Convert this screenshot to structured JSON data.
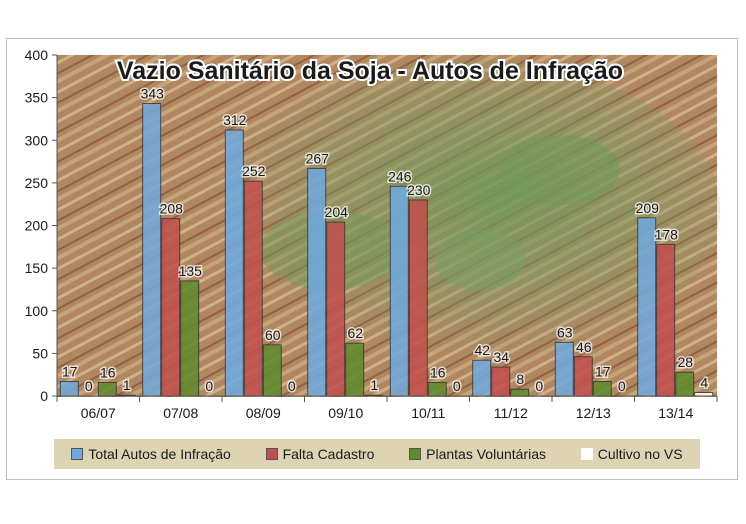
{
  "chart_data": {
    "type": "bar",
    "title": "Vazio Sanitário da Soja - Autos de Infração",
    "categories": [
      "06/07",
      "07/08",
      "08/09",
      "09/10",
      "10/11",
      "11/12",
      "12/13",
      "13/14"
    ],
    "series": [
      {
        "name": "Total Autos de Infração",
        "color": "#6fa8dc",
        "values": [
          17,
          343,
          312,
          267,
          246,
          42,
          63,
          209
        ]
      },
      {
        "name": "Falta Cadastro",
        "color": "#c0504d",
        "values": [
          0,
          208,
          252,
          204,
          230,
          34,
          46,
          178
        ]
      },
      {
        "name": "Plantas Voluntárias",
        "color": "#5e8a2e",
        "values": [
          16,
          135,
          60,
          62,
          16,
          8,
          17,
          28
        ]
      },
      {
        "name": "Cultivo no VS",
        "color": "#ffffff",
        "values": [
          1,
          0,
          0,
          1,
          0,
          0,
          0,
          4
        ]
      }
    ],
    "ylim": [
      0,
      400
    ],
    "yticks": [
      0,
      50,
      100,
      150,
      200,
      250,
      300,
      350,
      400
    ],
    "grid": false,
    "legend": "bottom"
  }
}
